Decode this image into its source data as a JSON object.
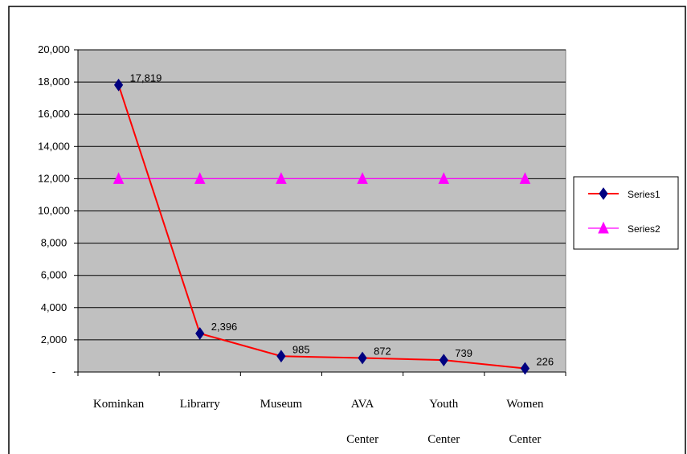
{
  "chart_data": {
    "type": "line",
    "title": "",
    "xlabel": "",
    "ylabel": "",
    "categories": [
      [
        "Kominkan"
      ],
      [
        "Librarry"
      ],
      [
        "Museum"
      ],
      [
        "AVA",
        "Center"
      ],
      [
        "Youth",
        "Center"
      ],
      [
        "Women",
        "Center"
      ]
    ],
    "ylim": [
      0,
      20000
    ],
    "yticks": [
      0,
      2000,
      4000,
      6000,
      8000,
      10000,
      12000,
      14000,
      16000,
      18000,
      20000
    ],
    "ytick_labels": [
      "-",
      "2,000",
      "4,000",
      "6,000",
      "8,000",
      "10,000",
      "12,000",
      "14,000",
      "16,000",
      "18,000",
      "20,000"
    ],
    "grid": true,
    "plot_background": "#c0c0c0",
    "legend_position": "right",
    "series": [
      {
        "name": "Series1",
        "values": [
          17819,
          2396,
          985,
          872,
          739,
          226
        ],
        "data_labels": [
          "17,819",
          "2,396",
          "985",
          "872",
          "739",
          "226"
        ],
        "line_color": "#ff0000",
        "marker": "diamond",
        "marker_color": "#000080"
      },
      {
        "name": "Series2",
        "values": [
          12000,
          12000,
          12000,
          12000,
          12000,
          12000
        ],
        "line_color": "#ff00ff",
        "marker": "triangle",
        "marker_color": "#ff00ff"
      }
    ]
  }
}
